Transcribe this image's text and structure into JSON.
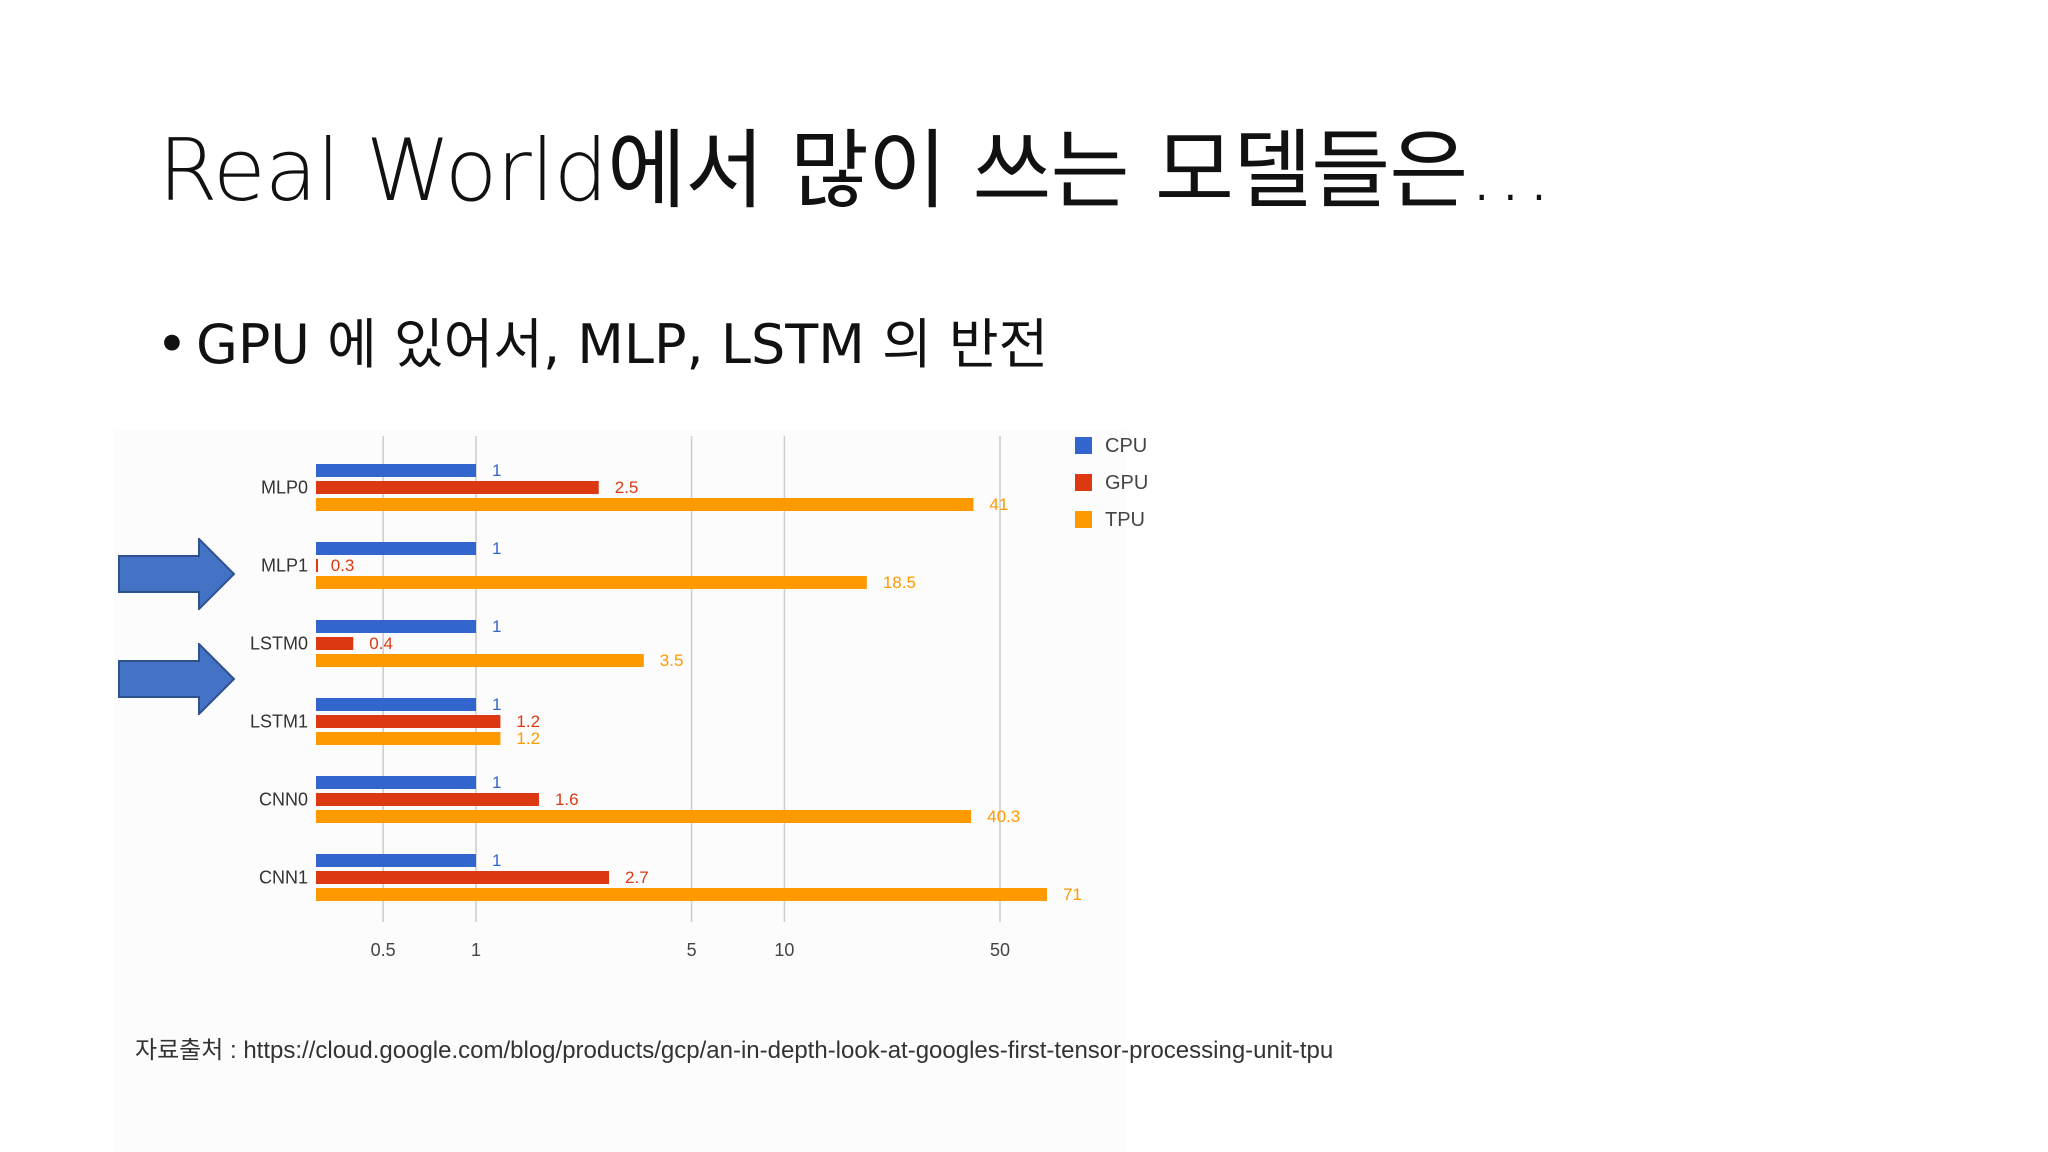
{
  "title": "Real World에서 많이 쓰는 모델들은…",
  "bullet": "GPU 에 있어서, MLP, LSTM 의 반전",
  "source": "자료출처 : https://cloud.google.com/blog/products/gcp/an-in-depth-look-at-googles-first-tensor-processing-unit-tpu",
  "colors": {
    "CPU": "#3366cc",
    "GPU": "#dc3912",
    "TPU": "#ff9900",
    "arrow": "#4472c4"
  },
  "icons": [
    "right-arrow-icon"
  ],
  "chart_data": {
    "type": "bar",
    "orientation": "horizontal",
    "x_scale": "log",
    "categories": [
      "MLP0",
      "MLP1",
      "LSTM0",
      "LSTM1",
      "CNN0",
      "CNN1"
    ],
    "series": [
      {
        "name": "CPU",
        "values": [
          1,
          1,
          1,
          1,
          1,
          1
        ],
        "labels": [
          "1",
          "1",
          "1",
          "1",
          "1",
          "1"
        ]
      },
      {
        "name": "GPU",
        "values": [
          2.5,
          0.3,
          0.4,
          1.2,
          1.6,
          2.7
        ],
        "labels": [
          "2.5",
          "0.3",
          "0.4",
          "1.2",
          "1.6",
          "2.7"
        ]
      },
      {
        "name": "TPU",
        "values": [
          41,
          18.5,
          3.5,
          1.2,
          40.3,
          71
        ],
        "labels": [
          "41",
          "18.5",
          "3.5",
          "1.2",
          "40.3",
          "71"
        ]
      }
    ],
    "x_ticks": [
      0.5,
      1,
      5,
      10,
      50
    ],
    "x_tick_labels": [
      "0.5",
      "1",
      "5",
      "10",
      "50"
    ],
    "xlim": [
      0.25,
      90
    ],
    "grid": true,
    "legend": "top-right",
    "highlighted_categories": [
      "MLP1",
      "LSTM0"
    ]
  }
}
